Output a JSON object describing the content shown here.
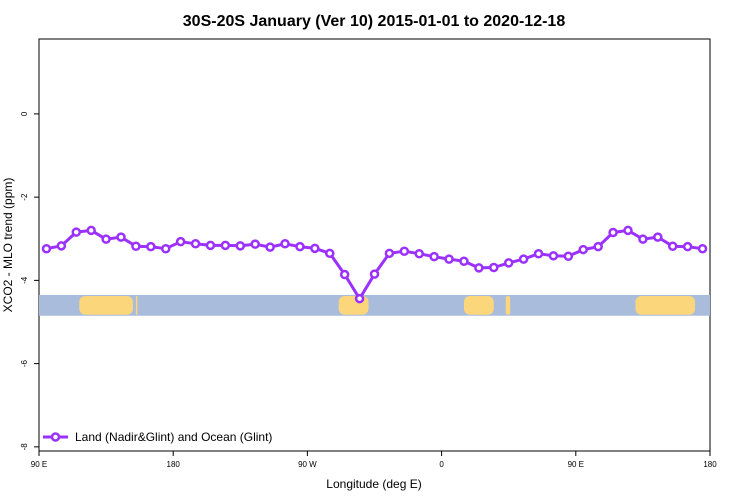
{
  "chart_data": {
    "type": "line",
    "title": "30S-20S January (Ver 10)   2015-01-01 to 2020-12-18",
    "xlabel": "Longitude (deg E)",
    "ylabel": "XCO2 - MLO trend (ppm)",
    "xlim": [
      90,
      540
    ],
    "ylim": [
      -8.1,
      1.8
    ],
    "x_ticks": [
      {
        "value": 90,
        "label": "90 E"
      },
      {
        "value": 180,
        "label": "180"
      },
      {
        "value": 270,
        "label": "90 W"
      },
      {
        "value": 360,
        "label": "0"
      },
      {
        "value": 450,
        "label": "90 E"
      },
      {
        "value": 540,
        "label": "180"
      }
    ],
    "y_ticks": [
      {
        "value": 0,
        "label": "0"
      },
      {
        "value": -2,
        "label": "-2"
      },
      {
        "value": -4,
        "label": "-4"
      },
      {
        "value": -6,
        "label": "-6"
      },
      {
        "value": -8,
        "label": "-8"
      }
    ],
    "series": [
      {
        "name": "Land (Nadir&Glint) and Ocean (Glint)",
        "color": "#9b30ff",
        "x": [
          95,
          105,
          115,
          125,
          135,
          145,
          155,
          165,
          175,
          185,
          195,
          205,
          215,
          225,
          235,
          245,
          255,
          265,
          275,
          285,
          295,
          305,
          315,
          325,
          335,
          345,
          355,
          365,
          375,
          385,
          395,
          405,
          415,
          425,
          435,
          445,
          455,
          465,
          475,
          485,
          495,
          505,
          515,
          525,
          535
        ],
        "values": [
          -3.24,
          -3.17,
          -2.84,
          -2.8,
          -3.01,
          -2.96,
          -3.18,
          -3.19,
          -3.24,
          -3.07,
          -3.12,
          -3.16,
          -3.16,
          -3.17,
          -3.13,
          -3.2,
          -3.12,
          -3.19,
          -3.23,
          -3.35,
          -3.86,
          -4.44,
          -3.85,
          -3.35,
          -3.3,
          -3.36,
          -3.43,
          -3.49,
          -3.54,
          -3.7,
          -3.69,
          -3.58,
          -3.49,
          -3.36,
          -3.41,
          -3.42,
          -3.26,
          -3.19,
          -2.85,
          -2.8,
          -3.01,
          -2.96,
          -3.18,
          -3.19,
          -3.24
        ]
      }
    ],
    "land_bar": {
      "y_range": [
        -4.85,
        -4.35
      ],
      "ocean_color": "#a9bcdc",
      "land_color": "#fcd67a",
      "land_x_ranges": [
        [
          117,
          153
        ],
        [
          155,
          156
        ],
        [
          291,
          311
        ],
        [
          375,
          395
        ],
        [
          403,
          406
        ],
        [
          490,
          530
        ]
      ]
    },
    "legend": {
      "position": "bottom-left",
      "label": "Land (Nadir&Glint) and Ocean (Glint)"
    },
    "grid": false
  }
}
